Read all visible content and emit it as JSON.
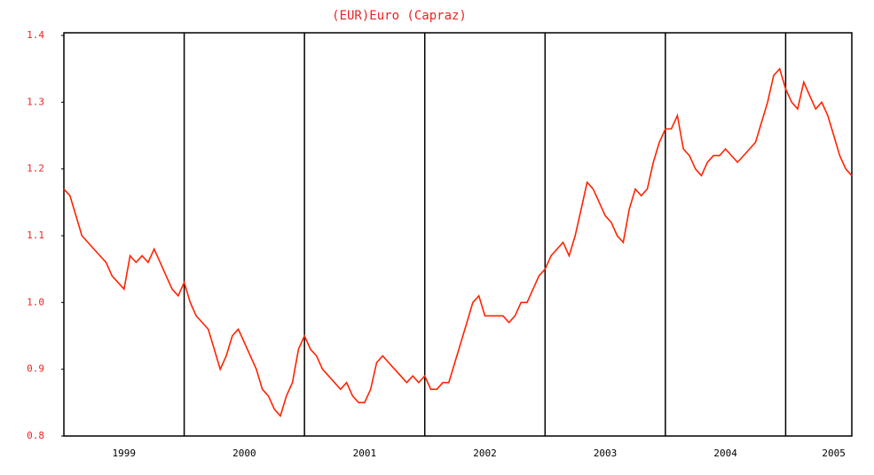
{
  "chart_data": {
    "type": "line",
    "title": "(EUR)Euro (Capraz)",
    "x": [
      1999.0,
      1999.05,
      1999.1,
      1999.15,
      1999.2,
      1999.25,
      1999.3,
      1999.35,
      1999.4,
      1999.45,
      1999.5,
      1999.55,
      1999.6,
      1999.65,
      1999.7,
      1999.75,
      1999.8,
      1999.85,
      1999.9,
      1999.95,
      2000.0,
      2000.05,
      2000.1,
      2000.15,
      2000.2,
      2000.25,
      2000.3,
      2000.35,
      2000.4,
      2000.45,
      2000.5,
      2000.55,
      2000.6,
      2000.65,
      2000.7,
      2000.75,
      2000.8,
      2000.85,
      2000.9,
      2000.95,
      2001.0,
      2001.05,
      2001.1,
      2001.15,
      2001.2,
      2001.25,
      2001.3,
      2001.35,
      2001.4,
      2001.45,
      2001.5,
      2001.55,
      2001.6,
      2001.65,
      2001.7,
      2001.75,
      2001.8,
      2001.85,
      2001.9,
      2001.95,
      2002.0,
      2002.05,
      2002.1,
      2002.15,
      2002.2,
      2002.25,
      2002.3,
      2002.35,
      2002.4,
      2002.45,
      2002.5,
      2002.55,
      2002.6,
      2002.65,
      2002.7,
      2002.75,
      2002.8,
      2002.85,
      2002.9,
      2002.95,
      2003.0,
      2003.05,
      2003.1,
      2003.15,
      2003.2,
      2003.25,
      2003.3,
      2003.35,
      2003.4,
      2003.45,
      2003.5,
      2003.55,
      2003.6,
      2003.65,
      2003.7,
      2003.75,
      2003.8,
      2003.85,
      2003.9,
      2003.95,
      2004.0,
      2004.05,
      2004.1,
      2004.15,
      2004.2,
      2004.25,
      2004.3,
      2004.35,
      2004.4,
      2004.45,
      2004.5,
      2004.55,
      2004.6,
      2004.65,
      2004.7,
      2004.75,
      2004.8,
      2004.85,
      2004.9,
      2004.95,
      2005.0,
      2005.05,
      2005.1,
      2005.15,
      2005.2,
      2005.25,
      2005.3,
      2005.35,
      2005.4,
      2005.45,
      2005.5,
      2005.55
    ],
    "series": [
      {
        "color": "#ff2200",
        "values": [
          1.17,
          1.16,
          1.13,
          1.1,
          1.09,
          1.08,
          1.07,
          1.06,
          1.04,
          1.03,
          1.02,
          1.07,
          1.06,
          1.07,
          1.06,
          1.08,
          1.06,
          1.04,
          1.02,
          1.01,
          1.03,
          1.0,
          0.98,
          0.97,
          0.96,
          0.93,
          0.9,
          0.92,
          0.95,
          0.96,
          0.94,
          0.92,
          0.9,
          0.87,
          0.86,
          0.84,
          0.83,
          0.86,
          0.88,
          0.93,
          0.95,
          0.93,
          0.92,
          0.9,
          0.89,
          0.88,
          0.87,
          0.88,
          0.86,
          0.85,
          0.85,
          0.87,
          0.91,
          0.92,
          0.91,
          0.9,
          0.89,
          0.88,
          0.89,
          0.88,
          0.89,
          0.87,
          0.87,
          0.88,
          0.88,
          0.91,
          0.94,
          0.97,
          1.0,
          1.01,
          0.98,
          0.98,
          0.98,
          0.98,
          0.97,
          0.98,
          1.0,
          1.0,
          1.02,
          1.04,
          1.05,
          1.07,
          1.08,
          1.09,
          1.07,
          1.1,
          1.14,
          1.18,
          1.17,
          1.15,
          1.13,
          1.12,
          1.1,
          1.09,
          1.14,
          1.17,
          1.16,
          1.17,
          1.21,
          1.24,
          1.26,
          1.26,
          1.28,
          1.23,
          1.22,
          1.2,
          1.19,
          1.21,
          1.22,
          1.22,
          1.23,
          1.22,
          1.21,
          1.22,
          1.23,
          1.24,
          1.27,
          1.3,
          1.34,
          1.35,
          1.32,
          1.3,
          1.29,
          1.33,
          1.31,
          1.29,
          1.3,
          1.28,
          1.25,
          1.22,
          1.2,
          1.19
        ]
      }
    ],
    "xlim": [
      1999.0,
      2005.55
    ],
    "xticks": [
      {
        "value": 1999.5,
        "label": "1999"
      },
      {
        "value": 2000.5,
        "label": "2000"
      },
      {
        "value": 2001.5,
        "label": "2001"
      },
      {
        "value": 2002.5,
        "label": "2002"
      },
      {
        "value": 2003.5,
        "label": "2003"
      },
      {
        "value": 2004.5,
        "label": "2004"
      },
      {
        "value": 2005.4,
        "label": "2005"
      }
    ],
    "xgrid": [
      2000,
      2001,
      2002,
      2003,
      2004,
      2005
    ],
    "ylim": [
      0.8,
      1.4
    ],
    "yticks": [
      0.8,
      0.9,
      {
        "value": 1.0,
        "label": "1.0"
      },
      1.1,
      1.2,
      1.3,
      1.4
    ]
  }
}
